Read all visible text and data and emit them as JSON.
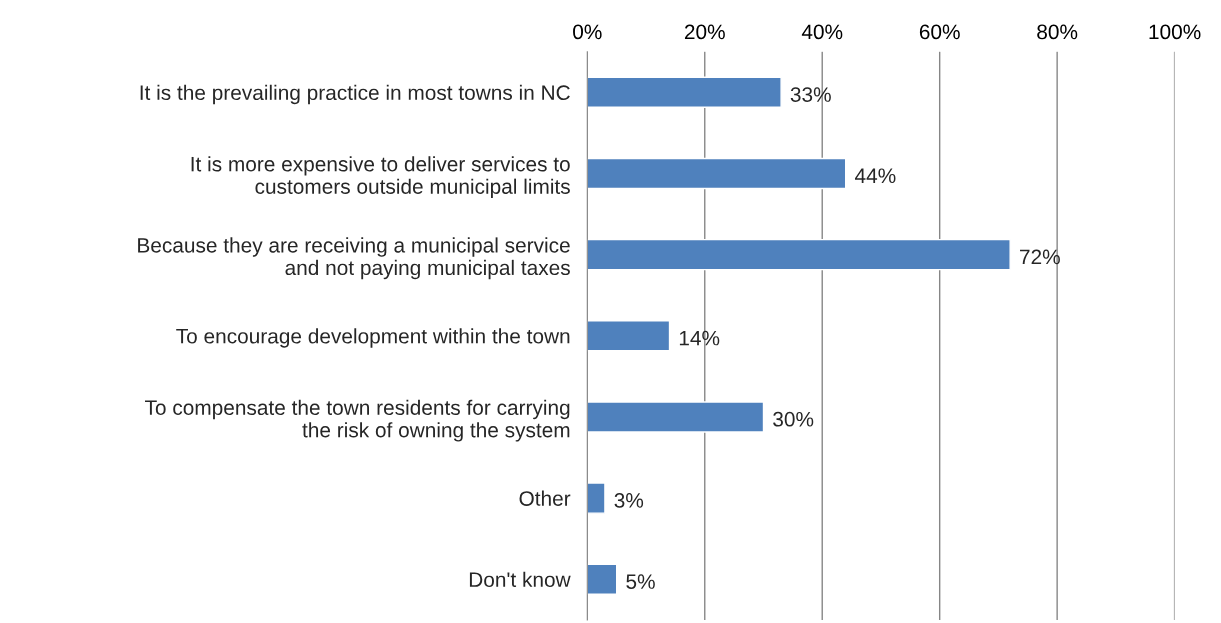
{
  "chart_data": {
    "type": "bar",
    "orientation": "horizontal",
    "categories": [
      "It is the prevailing practice in most towns in NC",
      "It is more expensive to deliver services to\ncustomers outside municipal limits",
      "Because they are receiving a municipal service\nand not paying municipal taxes",
      "To encourage development within the town",
      "To compensate the town residents for carrying\nthe risk of owning the system",
      "Other",
      "Don't know"
    ],
    "values": [
      33,
      44,
      72,
      14,
      30,
      3,
      5
    ],
    "value_labels": [
      "33%",
      "44%",
      "72%",
      "14%",
      "30%",
      "3%",
      "5%"
    ],
    "color": "#4f81bd",
    "xlim": [
      0,
      100
    ],
    "xticks": [
      {
        "value": 0,
        "label": "0%"
      },
      {
        "value": 20,
        "label": "20%"
      },
      {
        "value": 40,
        "label": "40%"
      },
      {
        "value": 60,
        "label": "60%"
      },
      {
        "value": 80,
        "label": "80%"
      },
      {
        "value": 100,
        "label": "100%"
      }
    ],
    "grid": "x",
    "legend": false
  }
}
